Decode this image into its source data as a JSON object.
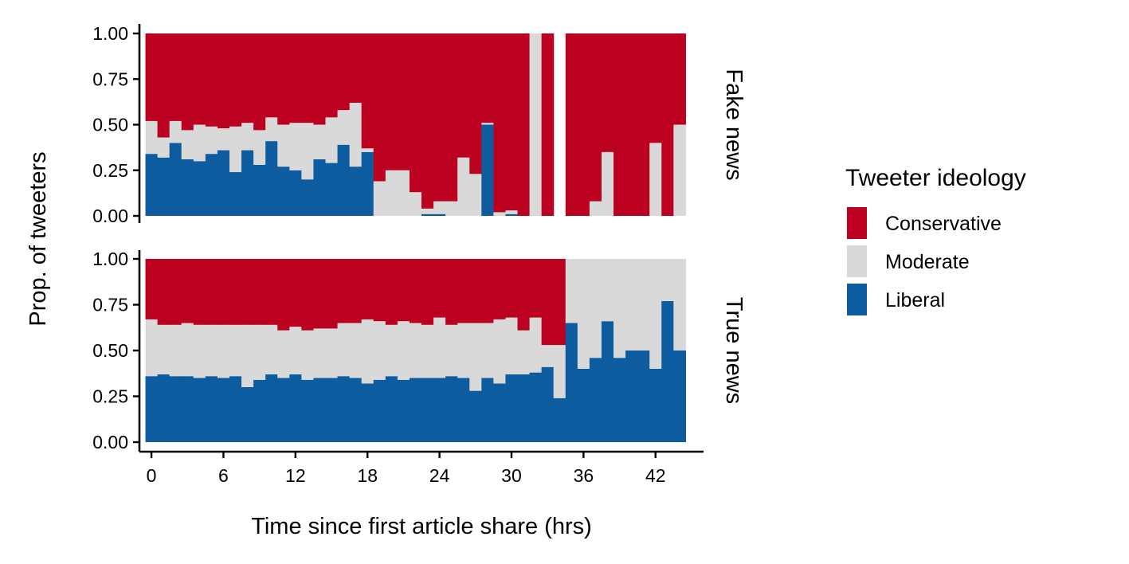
{
  "chart_data": {
    "type": "bar",
    "stacked": true,
    "normalized": true,
    "xlabel": "Time since first article share (hrs)",
    "ylabel": "Prop. of tweeters",
    "x_ticks": [
      0,
      6,
      12,
      18,
      24,
      30,
      36,
      42
    ],
    "y_ticks": [
      "0.00",
      "0.25",
      "0.50",
      "0.75",
      "1.00"
    ],
    "xlim": [
      -1,
      46
    ],
    "ylim": [
      0,
      1
    ],
    "grid": false,
    "colors": {
      "Conservative": "#BC0020",
      "Moderate": "#D9D9D9",
      "Liberal": "#0E5CA0"
    },
    "legend": {
      "title": "Tweeter ideology",
      "position": "right",
      "entries": [
        "Conservative",
        "Moderate",
        "Liberal"
      ]
    },
    "panels": [
      {
        "label": "Fake news",
        "x": [
          0,
          1,
          2,
          3,
          4,
          5,
          6,
          7,
          8,
          9,
          10,
          11,
          12,
          13,
          14,
          15,
          16,
          17,
          18,
          19,
          20,
          21,
          22,
          23,
          24,
          25,
          26,
          27,
          28,
          29,
          30,
          31,
          32,
          33,
          34,
          35,
          36,
          37,
          38,
          39,
          40,
          41,
          42,
          43,
          44
        ],
        "liberal": [
          0.34,
          0.32,
          0.4,
          0.31,
          0.3,
          0.34,
          0.36,
          0.24,
          0.36,
          0.28,
          0.41,
          0.27,
          0.25,
          0.2,
          0.31,
          0.29,
          0.39,
          0.27,
          0.35,
          0.0,
          0.0,
          0.0,
          0.0,
          0.01,
          0.01,
          0.0,
          0.0,
          0.0,
          0.5,
          0.0,
          0.01,
          0.0,
          0.0,
          0.0,
          null,
          0.0,
          0.0,
          0.0,
          0.0,
          0.0,
          0.0,
          0.0,
          0.0,
          0.0,
          0.0
        ],
        "moderate": [
          0.18,
          0.11,
          0.12,
          0.16,
          0.2,
          0.15,
          0.12,
          0.25,
          0.15,
          0.19,
          0.13,
          0.23,
          0.26,
          0.31,
          0.19,
          0.25,
          0.19,
          0.35,
          0.02,
          0.19,
          0.25,
          0.25,
          0.13,
          0.03,
          0.07,
          0.08,
          0.32,
          0.23,
          0.01,
          0.02,
          0.02,
          0.0,
          1.0,
          0.0,
          null,
          0.0,
          0.0,
          0.08,
          0.35,
          0.0,
          0.0,
          0.0,
          0.4,
          0.0,
          0.5
        ],
        "conservative": [
          0.48,
          0.57,
          0.48,
          0.53,
          0.5,
          0.51,
          0.52,
          0.51,
          0.49,
          0.53,
          0.46,
          0.5,
          0.49,
          0.49,
          0.5,
          0.46,
          0.42,
          0.38,
          0.63,
          0.81,
          0.75,
          0.75,
          0.87,
          0.96,
          0.92,
          0.92,
          0.68,
          0.77,
          0.49,
          0.98,
          0.97,
          1.0,
          0.0,
          1.0,
          null,
          1.0,
          1.0,
          0.92,
          0.65,
          1.0,
          1.0,
          1.0,
          0.6,
          1.0,
          0.5
        ]
      },
      {
        "label": "True news",
        "x": [
          0,
          1,
          2,
          3,
          4,
          5,
          6,
          7,
          8,
          9,
          10,
          11,
          12,
          13,
          14,
          15,
          16,
          17,
          18,
          19,
          20,
          21,
          22,
          23,
          24,
          25,
          26,
          27,
          28,
          29,
          30,
          31,
          32,
          33,
          34,
          35,
          36,
          37,
          38,
          39,
          40,
          41,
          42,
          43,
          44
        ],
        "liberal": [
          0.36,
          0.37,
          0.36,
          0.36,
          0.35,
          0.36,
          0.35,
          0.36,
          0.3,
          0.34,
          0.37,
          0.35,
          0.37,
          0.34,
          0.35,
          0.35,
          0.36,
          0.35,
          0.32,
          0.34,
          0.36,
          0.34,
          0.35,
          0.35,
          0.35,
          0.36,
          0.35,
          0.28,
          0.35,
          0.32,
          0.37,
          0.37,
          0.38,
          0.41,
          0.24,
          0.65,
          0.4,
          0.46,
          0.66,
          0.46,
          0.5,
          0.5,
          0.4,
          0.77,
          0.5
        ],
        "moderate": [
          0.31,
          0.27,
          0.28,
          0.29,
          0.29,
          0.28,
          0.29,
          0.28,
          0.34,
          0.3,
          0.27,
          0.26,
          0.26,
          0.27,
          0.27,
          0.27,
          0.29,
          0.3,
          0.35,
          0.32,
          0.28,
          0.32,
          0.3,
          0.29,
          0.33,
          0.28,
          0.3,
          0.37,
          0.3,
          0.35,
          0.31,
          0.24,
          0.3,
          0.12,
          0.29,
          0.35,
          0.6,
          0.54,
          0.34,
          0.54,
          0.5,
          0.5,
          0.6,
          0.23,
          0.5
        ],
        "conservative": [
          0.33,
          0.36,
          0.36,
          0.35,
          0.36,
          0.36,
          0.36,
          0.36,
          0.36,
          0.36,
          0.36,
          0.39,
          0.37,
          0.39,
          0.38,
          0.38,
          0.35,
          0.35,
          0.33,
          0.34,
          0.36,
          0.34,
          0.35,
          0.36,
          0.32,
          0.36,
          0.35,
          0.35,
          0.35,
          0.33,
          0.32,
          0.39,
          0.32,
          0.47,
          0.47,
          0.0,
          0.0,
          0.0,
          0.0,
          0.0,
          0.0,
          0.0,
          0.0,
          0.0,
          0.0
        ]
      }
    ]
  }
}
